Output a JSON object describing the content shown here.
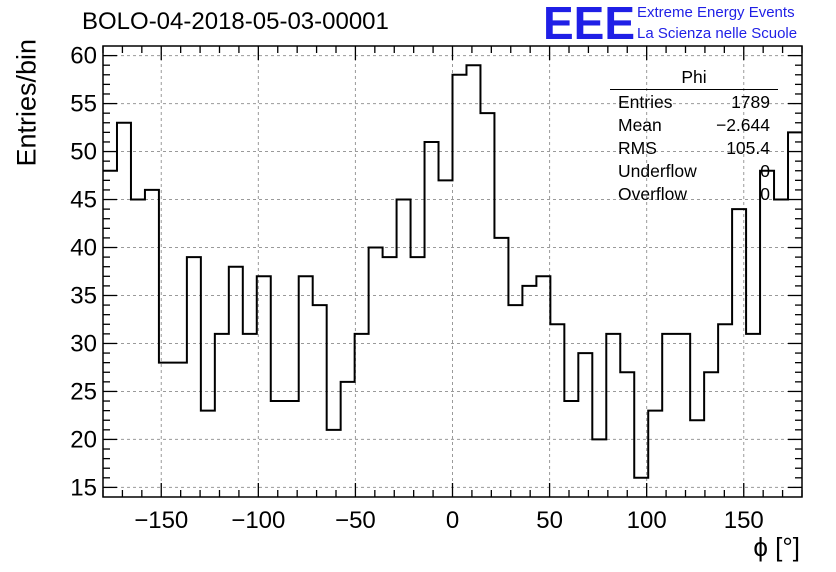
{
  "chart_data": {
    "type": "bar",
    "title": "BOLO-04-2018-05-03-00001",
    "xlabel": "ϕ [°]",
    "ylabel": "Entries/bin",
    "xlim": [
      -180,
      180
    ],
    "ylim": [
      14,
      61
    ],
    "bin_width": 7.2,
    "grid": true,
    "xticks": [
      -150,
      -100,
      -50,
      0,
      50,
      100,
      150
    ],
    "xtick_labels": [
      "−150",
      "−100",
      "−50",
      "0",
      "50",
      "100",
      "150"
    ],
    "yticks": [
      15,
      20,
      25,
      30,
      35,
      40,
      45,
      50,
      55,
      60
    ],
    "values": [
      48,
      53,
      45,
      46,
      28,
      28,
      39,
      23,
      31,
      38,
      31,
      37,
      24,
      24,
      37,
      34,
      21,
      26,
      31,
      40,
      39,
      45,
      39,
      51,
      47,
      58,
      59,
      54,
      41,
      34,
      36,
      37,
      32,
      24,
      29,
      20,
      31,
      27,
      16,
      23,
      31,
      31,
      22,
      27,
      32,
      44,
      31,
      48,
      45,
      52
    ]
  },
  "stats": {
    "name": "Phi",
    "rows": [
      {
        "label": "Entries",
        "value": "1789"
      },
      {
        "label": "Mean",
        "value": "−2.644"
      },
      {
        "label": "RMS",
        "value": "105.4"
      },
      {
        "label": "Underflow",
        "value": "0"
      },
      {
        "label": "Overflow",
        "value": "0"
      }
    ]
  },
  "logo": {
    "mark": "EEE",
    "line1": "Extreme Energy Events",
    "line2": "La Scienza nelle Scuole",
    "color": "#1f1fe6"
  }
}
